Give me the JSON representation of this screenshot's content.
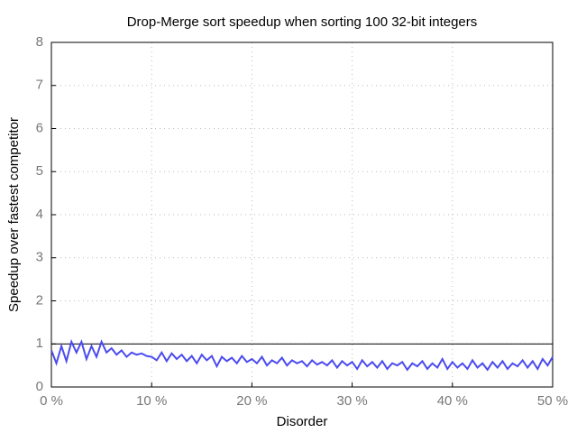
{
  "chart_data": {
    "type": "line",
    "title": "Drop-Merge sort speedup when sorting 100 32-bit integers",
    "x_label": "Disorder",
    "y_label": "Speedup over fastest competitor",
    "x": [
      0,
      0.5,
      1,
      1.5,
      2,
      2.5,
      3,
      3.5,
      4,
      4.5,
      5,
      5.5,
      6,
      6.5,
      7,
      7.5,
      8,
      8.5,
      9,
      9.5,
      10,
      10.5,
      11,
      11.5,
      12,
      12.5,
      13,
      13.5,
      14,
      14.5,
      15,
      15.5,
      16,
      16.5,
      17,
      17.5,
      18,
      18.5,
      19,
      19.5,
      20,
      20.5,
      21,
      21.5,
      22,
      22.5,
      23,
      23.5,
      24,
      24.5,
      25,
      25.5,
      26,
      26.5,
      27,
      27.5,
      28,
      28.5,
      29,
      29.5,
      30,
      30.5,
      31,
      31.5,
      32,
      32.5,
      33,
      33.5,
      34,
      34.5,
      35,
      35.5,
      36,
      36.5,
      37,
      37.5,
      38,
      38.5,
      39,
      39.5,
      40,
      40.5,
      41,
      41.5,
      42,
      42.5,
      43,
      43.5,
      44,
      44.5,
      45,
      45.5,
      46,
      46.5,
      47,
      47.5,
      48,
      48.5,
      49,
      49.5,
      50
    ],
    "series": [
      {
        "color": "#4b4bef",
        "values": [
          0.85,
          0.55,
          0.95,
          0.6,
          1.05,
          0.8,
          1.05,
          0.65,
          0.95,
          0.7,
          1.05,
          0.8,
          0.9,
          0.75,
          0.85,
          0.7,
          0.8,
          0.75,
          0.78,
          0.72,
          0.7,
          0.62,
          0.8,
          0.6,
          0.78,
          0.65,
          0.75,
          0.6,
          0.72,
          0.55,
          0.75,
          0.62,
          0.72,
          0.48,
          0.7,
          0.6,
          0.68,
          0.55,
          0.72,
          0.58,
          0.65,
          0.55,
          0.7,
          0.5,
          0.62,
          0.55,
          0.68,
          0.5,
          0.62,
          0.55,
          0.6,
          0.48,
          0.62,
          0.52,
          0.58,
          0.5,
          0.62,
          0.45,
          0.6,
          0.5,
          0.58,
          0.42,
          0.62,
          0.48,
          0.58,
          0.45,
          0.6,
          0.42,
          0.55,
          0.5,
          0.58,
          0.4,
          0.55,
          0.48,
          0.6,
          0.42,
          0.55,
          0.45,
          0.65,
          0.42,
          0.58,
          0.45,
          0.55,
          0.42,
          0.62,
          0.45,
          0.55,
          0.4,
          0.58,
          0.45,
          0.6,
          0.42,
          0.55,
          0.48,
          0.62,
          0.45,
          0.6,
          0.42,
          0.65,
          0.5,
          0.7
        ]
      }
    ],
    "reference_line": 1,
    "xlim": [
      0,
      50
    ],
    "ylim": [
      0,
      8
    ],
    "xticks": [
      {
        "value": 0,
        "label": "0 %"
      },
      {
        "value": 10,
        "label": "10 %"
      },
      {
        "value": 20,
        "label": "20 %"
      },
      {
        "value": 30,
        "label": "30 %"
      },
      {
        "value": 40,
        "label": "40 %"
      },
      {
        "value": 50,
        "label": "50 %"
      }
    ],
    "yticks": [
      0,
      1,
      2,
      3,
      4,
      5,
      6,
      7,
      8
    ],
    "grid": true
  }
}
